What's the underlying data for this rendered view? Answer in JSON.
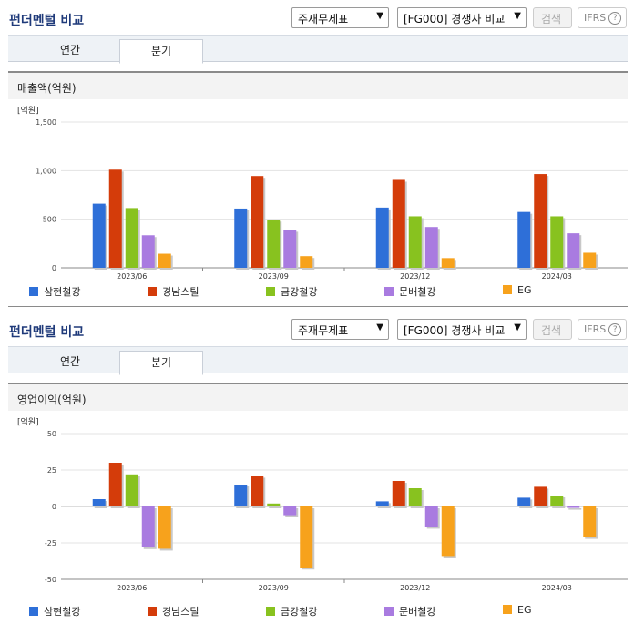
{
  "panels": [
    {
      "title": "펀더멘털 비교",
      "select1": "주재무제표",
      "select2": "[FG000] 경쟁사 비교",
      "search_label": "검색",
      "ifrs_label": "IFRS",
      "tabs": [
        "연간",
        "분기"
      ],
      "active_tab": "분기",
      "subtitle": "매출액(억원)",
      "unit": "[억원]"
    },
    {
      "title": "펀더멘털 비교",
      "select1": "주재무제표",
      "select2": "[FG000] 경쟁사 비교",
      "search_label": "검색",
      "ifrs_label": "IFRS",
      "tabs": [
        "연간",
        "분기"
      ],
      "active_tab": "분기",
      "subtitle": "영업이익(억원)",
      "unit": "[억원]"
    }
  ],
  "colors": {
    "삼현철강": "#2e6fd8",
    "경남스틸": "#d43c0a",
    "금강철강": "#88c21f",
    "문배철강": "#a97be0",
    "EG": "#f7a21c"
  },
  "chart_data": [
    {
      "type": "bar",
      "title": "매출액(억원)",
      "ylabel": "[억원]",
      "categories": [
        "2023/06",
        "2023/09",
        "2023/12",
        "2024/03"
      ],
      "ylim": [
        0,
        1500
      ],
      "yticks": [
        0,
        500,
        1000,
        1500
      ],
      "ytick_labels": [
        "0",
        "500",
        "1,000",
        "1,500"
      ],
      "series": [
        {
          "name": "삼현철강",
          "values": [
            660,
            610,
            620,
            575
          ]
        },
        {
          "name": "경남스틸",
          "values": [
            1010,
            945,
            905,
            965
          ]
        },
        {
          "name": "금강철강",
          "values": [
            615,
            495,
            530,
            530
          ]
        },
        {
          "name": "문배철강",
          "values": [
            335,
            390,
            420,
            355
          ]
        },
        {
          "name": "EG",
          "values": [
            145,
            120,
            100,
            155
          ]
        }
      ]
    },
    {
      "type": "bar",
      "title": "영업이익(억원)",
      "ylabel": "[억원]",
      "categories": [
        "2023/06",
        "2023/09",
        "2023/12",
        "2024/03"
      ],
      "ylim": [
        -50,
        50
      ],
      "yticks": [
        -50,
        -25,
        0,
        25,
        50
      ],
      "ytick_labels": [
        "-50",
        "-25",
        "0",
        "25",
        "50"
      ],
      "series": [
        {
          "name": "삼현철강",
          "values": [
            5,
            15,
            3.5,
            6
          ]
        },
        {
          "name": "경남스틸",
          "values": [
            30,
            21,
            17.5,
            13.5
          ]
        },
        {
          "name": "금강철강",
          "values": [
            22,
            2,
            12.5,
            7.5
          ]
        },
        {
          "name": "문배철강",
          "values": [
            -28,
            -6,
            -14,
            -1
          ]
        },
        {
          "name": "EG",
          "values": [
            -29,
            -42,
            -34,
            -21
          ]
        }
      ]
    }
  ]
}
